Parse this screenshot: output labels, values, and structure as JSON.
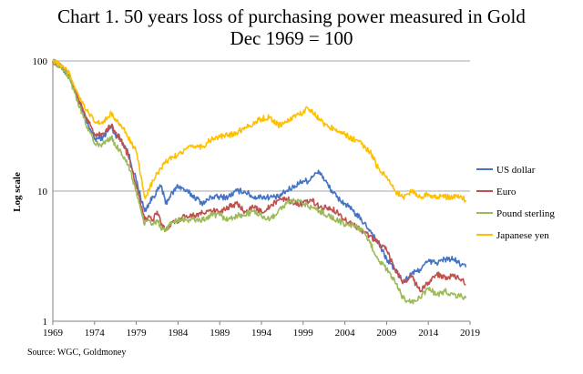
{
  "chart_data": {
    "type": "line",
    "title": "Chart 1. 50 years loss of purchasing power measured in Gold",
    "subtitle": "Dec 1969 = 100",
    "xlabel": "",
    "ylabel": "Log scale",
    "y_scale": "log",
    "xlim": [
      1969,
      2019
    ],
    "ylim": [
      1,
      100
    ],
    "x_ticks": [
      "1969",
      "1974",
      "1979",
      "1984",
      "1989",
      "1994",
      "1999",
      "2004",
      "2009",
      "2014",
      "2019"
    ],
    "y_ticks": [
      "1",
      "10",
      "100"
    ],
    "grid": "horizontal",
    "legend_position": "right",
    "source": "Source: WGC, Goldmoney",
    "series": [
      {
        "name": "US dollar",
        "color": "#4472C4",
        "x": [
          1969,
          1970,
          1971,
          1972,
          1972.5,
          1973,
          1973.5,
          1974,
          1975,
          1976,
          1976.5,
          1977,
          1978,
          1979,
          1980,
          1980.5,
          1981,
          1981.5,
          1982,
          1982.5,
          1983,
          1984,
          1985,
          1986,
          1987,
          1988,
          1989,
          1990,
          1991,
          1992,
          1993,
          1994,
          1995,
          1996,
          1997,
          1998,
          1999,
          1999.8,
          2000,
          2001,
          2002,
          2003,
          2004,
          2005,
          2006,
          2007,
          2008,
          2009,
          2010,
          2011,
          2012,
          2013,
          2014,
          2015,
          2016,
          2017,
          2018,
          2018.5
        ],
        "y": [
          100,
          90,
          75,
          50,
          42,
          34,
          30,
          25,
          26,
          31,
          27,
          26,
          20,
          12,
          7,
          8,
          9,
          10,
          11,
          8,
          9,
          11,
          10,
          9,
          8,
          9,
          9,
          9,
          10,
          10,
          9,
          9,
          9,
          9,
          10,
          11,
          12,
          12,
          13,
          14,
          11,
          9,
          8,
          7,
          6,
          5,
          4,
          3,
          2.5,
          2,
          2.3,
          2.5,
          2.9,
          2.8,
          3,
          3,
          2.7,
          2.6
        ]
      },
      {
        "name": "Euro",
        "color": "#C0504D",
        "x": [
          1969,
          1970,
          1971,
          1972,
          1972.5,
          1973,
          1973.5,
          1974,
          1975,
          1976,
          1976.5,
          1977,
          1978,
          1979,
          1980,
          1980.5,
          1981,
          1981.5,
          1982,
          1982.5,
          1983,
          1984,
          1985,
          1986,
          1987,
          1988,
          1989,
          1990,
          1991,
          1992,
          1993,
          1994,
          1995,
          1996,
          1997,
          1998,
          1999,
          2000,
          2001,
          2002,
          2003,
          2004,
          2005,
          2006,
          2007,
          2008,
          2009,
          2010,
          2011,
          2012,
          2013,
          2014,
          2015,
          2016,
          2017,
          2018,
          2018.5
        ],
        "y": [
          100,
          92,
          78,
          52,
          44,
          36,
          32,
          27,
          28,
          32,
          28,
          26,
          19,
          11,
          6,
          6.5,
          6,
          7,
          5.5,
          5,
          5.5,
          6,
          6.5,
          6.5,
          6.8,
          7,
          7,
          7.5,
          8,
          7,
          7.5,
          7,
          7.5,
          8.5,
          8.8,
          8,
          8,
          8.5,
          7.5,
          7.5,
          7,
          6,
          5.5,
          5,
          4.5,
          4,
          3.5,
          2.5,
          2,
          2.2,
          1.7,
          2,
          2.3,
          2.2,
          2.2,
          2.1,
          1.9
        ]
      },
      {
        "name": "Pound sterling",
        "color": "#9BBB59",
        "x": [
          1969,
          1970,
          1971,
          1972,
          1972.5,
          1973,
          1973.5,
          1974,
          1975,
          1976,
          1976.5,
          1977,
          1978,
          1979,
          1980,
          1980.5,
          1981,
          1981.5,
          1982,
          1982.5,
          1983,
          1984,
          1985,
          1986,
          1987,
          1988,
          1989,
          1990,
          1991,
          1992,
          1993,
          1994,
          1995,
          1996,
          1997,
          1998,
          1999,
          2000,
          2001,
          2002,
          2003,
          2004,
          2005,
          2006,
          2007,
          2008,
          2009,
          2010,
          2011,
          2012,
          2013,
          2014,
          2015,
          2016,
          2017,
          2018,
          2018.5
        ],
        "y": [
          100,
          90,
          74,
          48,
          40,
          32,
          28,
          23,
          23,
          26,
          22,
          21,
          16,
          10,
          5.5,
          6,
          5.5,
          6,
          5,
          5,
          5.5,
          6,
          6,
          6,
          6,
          6.5,
          6.5,
          6,
          6.5,
          6.5,
          7,
          6.5,
          6,
          7,
          8,
          8.5,
          8,
          7.5,
          7,
          6.5,
          6,
          5.5,
          5.5,
          5,
          4,
          3,
          2.5,
          2,
          1.5,
          1.4,
          1.5,
          1.8,
          1.6,
          1.7,
          1.6,
          1.55,
          1.5
        ]
      },
      {
        "name": "Japanese yen",
        "color": "#FFC000",
        "x": [
          1969,
          1970,
          1971,
          1972,
          1972.5,
          1973,
          1973.5,
          1974,
          1975,
          1976,
          1976.5,
          1977,
          1978,
          1979,
          1980,
          1980.5,
          1981,
          1982,
          1983,
          1984,
          1985,
          1986,
          1987,
          1988,
          1989,
          1990,
          1991,
          1992,
          1993,
          1994,
          1995,
          1996,
          1997,
          1998,
          1999,
          1999.5,
          2000,
          2001,
          2002,
          2003,
          2004,
          2005,
          2006,
          2007,
          2008,
          2009,
          2010,
          2011,
          2012,
          2013,
          2014,
          2015,
          2016,
          2017,
          2018,
          2018.5
        ],
        "y": [
          100,
          92,
          80,
          56,
          48,
          42,
          38,
          34,
          33,
          40,
          36,
          33,
          26,
          20,
          9,
          10,
          12,
          15,
          18,
          19,
          21,
          22,
          22,
          25,
          26,
          27,
          28,
          31,
          33,
          36,
          37,
          32,
          34,
          38,
          40,
          44,
          42,
          35,
          31,
          30,
          27,
          25,
          23,
          20,
          15,
          13,
          10,
          9,
          10,
          9,
          9.5,
          9,
          9,
          9,
          9,
          8.5
        ]
      }
    ]
  }
}
